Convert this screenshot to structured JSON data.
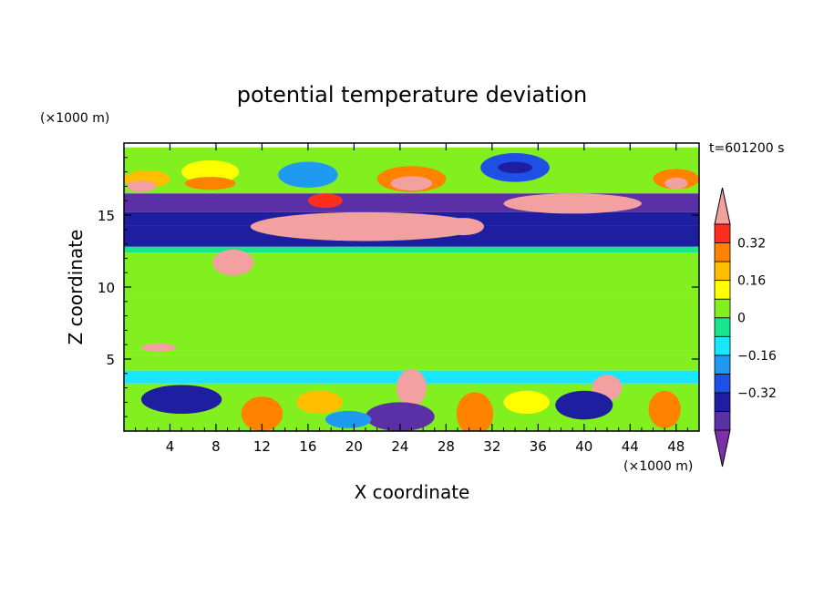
{
  "chart_data": {
    "type": "heatmap",
    "title": "potential temperature deviation",
    "xlabel": "X coordinate",
    "ylabel": "Z coordinate",
    "x_unit": "(×1000 m)",
    "y_unit": "(×1000 m)",
    "time_label": "t=601200 s",
    "xlim": [
      0,
      50
    ],
    "ylim": [
      0,
      20
    ],
    "x_ticks": [
      4,
      8,
      12,
      16,
      20,
      24,
      28,
      32,
      36,
      40,
      44,
      48
    ],
    "y_ticks": [
      5,
      10,
      15
    ],
    "colorbar": {
      "levels": [
        -0.48,
        -0.4,
        -0.32,
        -0.24,
        -0.16,
        -0.08,
        0,
        0.08,
        0.16,
        0.24,
        0.32,
        0.4
      ],
      "colors": [
        "#7b2fa8",
        "#5b2fa5",
        "#1e1ea0",
        "#1e50e6",
        "#1e9bf0",
        "#19e6ff",
        "#19e68c",
        "#82f01e",
        "#ffff00",
        "#ffbe00",
        "#ff8200",
        "#ff2d1e",
        "#f2a0a0"
      ],
      "tick_labels": [
        "0.32",
        "0.16",
        "0",
        "−0.16",
        "−0.32"
      ],
      "tick_values": [
        0.32,
        0.16,
        0,
        -0.16,
        -0.32
      ]
    },
    "field_bands": [
      {
        "z": [
          16.5,
          19.7
        ],
        "value": 0.05
      },
      {
        "z": [
          15.2,
          16.5
        ],
        "value": -0.42
      },
      {
        "z": [
          14.3,
          15.2
        ],
        "value": -0.36
      },
      {
        "z": [
          12.8,
          14.3
        ],
        "value": -0.4
      },
      {
        "z": [
          12.4,
          12.8
        ],
        "value": -0.02
      },
      {
        "z": [
          9.5,
          12.4
        ],
        "value": 0.0
      },
      {
        "z": [
          5.3,
          9.5
        ],
        "value": 0.05
      },
      {
        "z": [
          4.2,
          5.3
        ],
        "value": 0.02
      },
      {
        "z": [
          3.3,
          4.2
        ],
        "value": -0.1
      },
      {
        "z": [
          0.0,
          3.3
        ],
        "value": 0.0
      }
    ],
    "field_features": [
      {
        "x": 2.0,
        "z": 17.5,
        "rx": 2.0,
        "rz": 0.6,
        "value": 0.2
      },
      {
        "x": 1.5,
        "z": 17.0,
        "rx": 1.3,
        "rz": 0.4,
        "value": 0.45
      },
      {
        "x": 7.5,
        "z": 18.0,
        "rx": 2.5,
        "rz": 0.8,
        "value": 0.1
      },
      {
        "x": 7.5,
        "z": 17.2,
        "rx": 2.2,
        "rz": 0.45,
        "value": 0.3
      },
      {
        "x": 16.0,
        "z": 17.8,
        "rx": 2.6,
        "rz": 0.9,
        "value": -0.18
      },
      {
        "x": 17.5,
        "z": 16.0,
        "rx": 1.5,
        "rz": 0.5,
        "value": 0.35
      },
      {
        "x": 25.0,
        "z": 17.5,
        "rx": 3.0,
        "rz": 0.9,
        "value": 0.25
      },
      {
        "x": 25.0,
        "z": 17.2,
        "rx": 1.8,
        "rz": 0.5,
        "value": 0.45
      },
      {
        "x": 34.0,
        "z": 18.3,
        "rx": 3.0,
        "rz": 1.0,
        "value": -0.3
      },
      {
        "x": 34.0,
        "z": 18.3,
        "rx": 1.5,
        "rz": 0.4,
        "value": -0.4
      },
      {
        "x": 39.0,
        "z": 15.8,
        "rx": 6.0,
        "rz": 0.7,
        "value": 0.45
      },
      {
        "x": 48.0,
        "z": 17.5,
        "rx": 2.0,
        "rz": 0.7,
        "value": 0.3
      },
      {
        "x": 48.0,
        "z": 17.2,
        "rx": 1.0,
        "rz": 0.4,
        "value": 0.45
      },
      {
        "x": 21.0,
        "z": 14.2,
        "rx": 10.0,
        "rz": 1.0,
        "value": 0.45
      },
      {
        "x": 29.5,
        "z": 14.2,
        "rx": 1.8,
        "rz": 0.6,
        "value": 0.45
      },
      {
        "x": 9.5,
        "z": 11.7,
        "rx": 1.8,
        "rz": 0.9,
        "value": 0.45
      },
      {
        "x": 3.0,
        "z": 5.8,
        "rx": 1.5,
        "rz": 0.3,
        "value": 0.45
      },
      {
        "x": 25.0,
        "z": 3.0,
        "rx": 1.3,
        "rz": 1.3,
        "value": 0.45
      },
      {
        "x": 42.0,
        "z": 3.0,
        "rx": 1.3,
        "rz": 0.9,
        "value": 0.45
      },
      {
        "x": 12.0,
        "z": 1.2,
        "rx": 1.8,
        "rz": 1.2,
        "value": 0.3
      },
      {
        "x": 30.5,
        "z": 1.2,
        "rx": 1.6,
        "rz": 1.5,
        "value": 0.3
      },
      {
        "x": 47.0,
        "z": 1.5,
        "rx": 1.4,
        "rz": 1.3,
        "value": 0.3
      },
      {
        "x": 5.0,
        "z": 2.2,
        "rx": 3.5,
        "rz": 1.0,
        "value": -0.4
      },
      {
        "x": 24.0,
        "z": 1.0,
        "rx": 3.0,
        "rz": 1.0,
        "value": -0.42
      },
      {
        "x": 40.0,
        "z": 1.8,
        "rx": 2.5,
        "rz": 1.0,
        "value": -0.4
      },
      {
        "x": 17.0,
        "z": 2.0,
        "rx": 2.0,
        "rz": 0.8,
        "value": 0.2
      },
      {
        "x": 35.0,
        "z": 2.0,
        "rx": 2.0,
        "rz": 0.8,
        "value": 0.15
      },
      {
        "x": 19.5,
        "z": 0.8,
        "rx": 2.0,
        "rz": 0.6,
        "value": -0.2
      }
    ]
  }
}
